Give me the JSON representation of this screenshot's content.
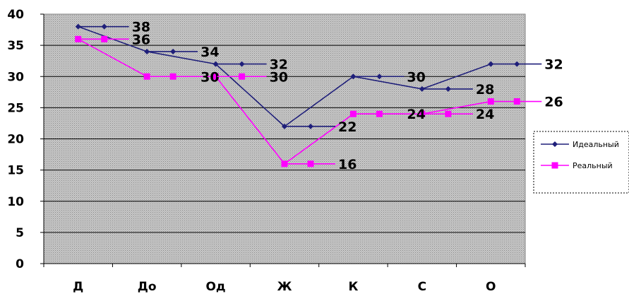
{
  "chart_data": {
    "type": "line",
    "categories": [
      "Д",
      "До",
      "Од",
      "Ж",
      "К",
      "С",
      "О"
    ],
    "ylim": [
      0,
      40
    ],
    "yticks": [
      0,
      5,
      10,
      15,
      20,
      25,
      30,
      35,
      40
    ],
    "grid": true,
    "legend_position": "right",
    "series": [
      {
        "name": "Идеальный",
        "values": [
          38,
          34,
          32,
          22,
          30,
          28,
          32
        ],
        "color": "#1f1f7a",
        "marker": "diamond"
      },
      {
        "name": "Реальный",
        "values": [
          36,
          30,
          30,
          16,
          24,
          24,
          26
        ],
        "color": "#ff00ff",
        "marker": "square"
      }
    ],
    "colors": {
      "plot_background": "#c0c0c0",
      "gridline": "#000000"
    }
  }
}
